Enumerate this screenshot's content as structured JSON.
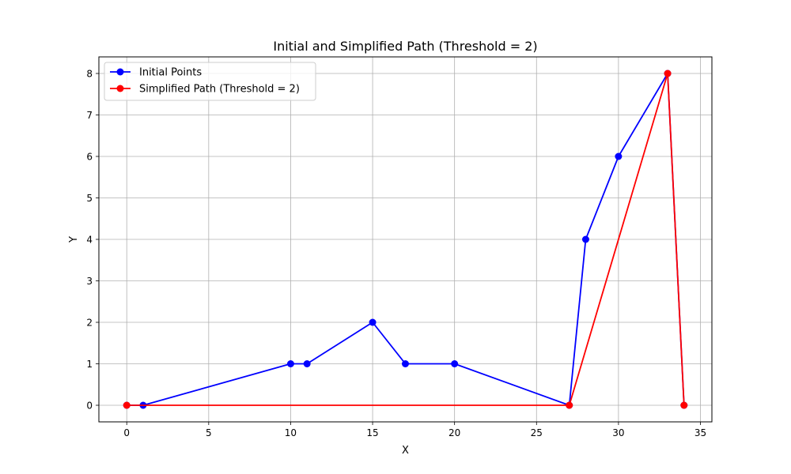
{
  "chart_data": {
    "type": "line",
    "title": "Initial and Simplified Path (Threshold = 2)",
    "xlabel": "X",
    "ylabel": "Y",
    "xlim": [
      -1.7,
      35.7
    ],
    "ylim": [
      -0.4,
      8.4
    ],
    "xticks": [
      0,
      5,
      10,
      15,
      20,
      25,
      30,
      35
    ],
    "yticks": [
      0,
      1,
      2,
      3,
      4,
      5,
      6,
      7,
      8
    ],
    "grid": true,
    "legend_position": "top-left",
    "series": [
      {
        "name": "Initial Points",
        "color": "#0000ff",
        "marker": "circle",
        "x": [
          0,
          1,
          10,
          11,
          15,
          17,
          20,
          27,
          28,
          30,
          33,
          34
        ],
        "y": [
          0,
          0,
          1,
          1,
          2,
          1,
          1,
          0,
          4,
          6,
          8,
          0
        ]
      },
      {
        "name": "Simplified Path (Threshold = 2)",
        "color": "#ff0000",
        "marker": "circle",
        "x": [
          0,
          27,
          33,
          34
        ],
        "y": [
          0,
          0,
          8,
          0
        ]
      }
    ]
  }
}
